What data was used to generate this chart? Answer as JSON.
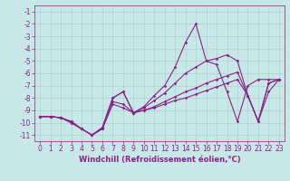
{
  "xlabel": "Windchill (Refroidissement éolien,°C)",
  "background_color": "#c8e8e8",
  "grid_color": "#b0d0d0",
  "line_color": "#882288",
  "xlim": [
    -0.5,
    23.5
  ],
  "ylim": [
    -11.5,
    -0.5
  ],
  "yticks": [
    -1,
    -2,
    -3,
    -4,
    -5,
    -6,
    -7,
    -8,
    -9,
    -10,
    -11
  ],
  "xticks": [
    0,
    1,
    2,
    3,
    4,
    5,
    6,
    7,
    8,
    9,
    10,
    11,
    12,
    13,
    14,
    15,
    16,
    17,
    18,
    19,
    20,
    21,
    22,
    23
  ],
  "line1_x": [
    0,
    1,
    2,
    3,
    4,
    5,
    6,
    7,
    8,
    9,
    10,
    11,
    12,
    13,
    14,
    15,
    16,
    17,
    18,
    19,
    20,
    21,
    22,
    23
  ],
  "line1_y": [
    -9.5,
    -9.5,
    -9.6,
    -9.9,
    -10.5,
    -11.0,
    -10.5,
    -8.3,
    -8.5,
    -9.2,
    -9.0,
    -8.7,
    -8.3,
    -7.9,
    -7.5,
    -7.2,
    -6.8,
    -6.5,
    -6.2,
    -5.9,
    -7.8,
    -9.9,
    -6.8,
    -6.5
  ],
  "line2_x": [
    0,
    1,
    2,
    3,
    4,
    5,
    6,
    7,
    8,
    9,
    10,
    11,
    12,
    13,
    14,
    15,
    16,
    17,
    18,
    19,
    20,
    21,
    22,
    23
  ],
  "line2_y": [
    -9.5,
    -9.5,
    -9.6,
    -10.0,
    -10.5,
    -11.0,
    -10.4,
    -8.0,
    -7.5,
    -9.2,
    -8.7,
    -7.8,
    -7.0,
    -5.5,
    -3.5,
    -2.0,
    -5.0,
    -4.8,
    -4.5,
    -5.0,
    -7.8,
    -9.9,
    -7.5,
    -6.5
  ],
  "line3_x": [
    0,
    1,
    2,
    3,
    4,
    5,
    6,
    7,
    8,
    9,
    10,
    11,
    12,
    13,
    14,
    15,
    16,
    17,
    18,
    19,
    20,
    21,
    22,
    23
  ],
  "line3_y": [
    -9.5,
    -9.5,
    -9.6,
    -10.0,
    -10.5,
    -11.0,
    -10.4,
    -8.0,
    -7.5,
    -9.2,
    -8.8,
    -8.2,
    -7.6,
    -6.8,
    -6.0,
    -5.5,
    -5.0,
    -5.3,
    -7.5,
    -9.9,
    -7.0,
    -6.5,
    -6.5,
    -6.5
  ],
  "line4_x": [
    0,
    1,
    2,
    3,
    4,
    5,
    6,
    7,
    8,
    9,
    10,
    11,
    12,
    13,
    14,
    15,
    16,
    17,
    18,
    19,
    20,
    21,
    22,
    23
  ],
  "line4_y": [
    -9.5,
    -9.5,
    -9.6,
    -9.9,
    -10.5,
    -11.0,
    -10.5,
    -8.5,
    -8.8,
    -9.2,
    -9.0,
    -8.8,
    -8.5,
    -8.2,
    -8.0,
    -7.7,
    -7.4,
    -7.1,
    -6.8,
    -6.5,
    -7.8,
    -9.9,
    -6.8,
    -6.5
  ],
  "marker": "D",
  "marker_size": 1.8,
  "line_width": 0.8,
  "font_size_xlabel": 6,
  "font_size_ticks": 5.5
}
